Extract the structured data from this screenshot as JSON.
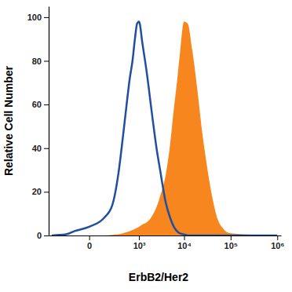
{
  "chart_data": {
    "type": "line",
    "x_label": "ErbB2/Her2",
    "y_label": "Relative Cell Number",
    "log": "x",
    "x": [
      -500,
      -200,
      -100,
      0,
      100,
      200,
      300,
      400,
      500,
      600,
      700,
      800,
      900,
      1000,
      1200,
      1500,
      2000,
      2500,
      3000,
      4000,
      5000,
      6000,
      7000,
      8000,
      10000,
      12000,
      15000,
      20000,
      25000,
      30000,
      40000,
      50000,
      70000,
      100000,
      1000000
    ],
    "series": [
      {
        "type": "area",
        "color": "#f7861f",
        "values": [
          0,
          0,
          0,
          0,
          0,
          0.3,
          0.5,
          1,
          1.5,
          2,
          2.5,
          3,
          3.5,
          4,
          5,
          6,
          9,
          13,
          18,
          28,
          42,
          58,
          70,
          82,
          98,
          97,
          85,
          64,
          46,
          34,
          18,
          9,
          3,
          1,
          0
        ]
      },
      {
        "type": "line",
        "color": "#1f4f9e",
        "values": [
          0,
          0.5,
          2,
          4,
          8,
          14,
          28,
          45,
          60,
          72,
          80,
          90,
          97,
          98,
          88,
          75,
          55,
          40,
          30,
          15,
          8,
          4,
          2,
          1,
          0.5,
          0,
          0,
          0,
          0,
          0,
          0,
          0,
          0,
          0,
          0
        ]
      }
    ],
    "xlim": [
      -600,
      1200000
    ],
    "xticks": [
      0,
      {
        "value": 1000,
        "label": "10³"
      },
      {
        "value": 10000,
        "label": "10⁴"
      },
      {
        "value": 100000,
        "label": "10⁵"
      },
      {
        "value": 1000000,
        "label": "10⁶"
      }
    ],
    "ylim": [
      0,
      105
    ],
    "yticks": [
      0,
      20,
      40,
      60,
      80,
      100
    ]
  }
}
